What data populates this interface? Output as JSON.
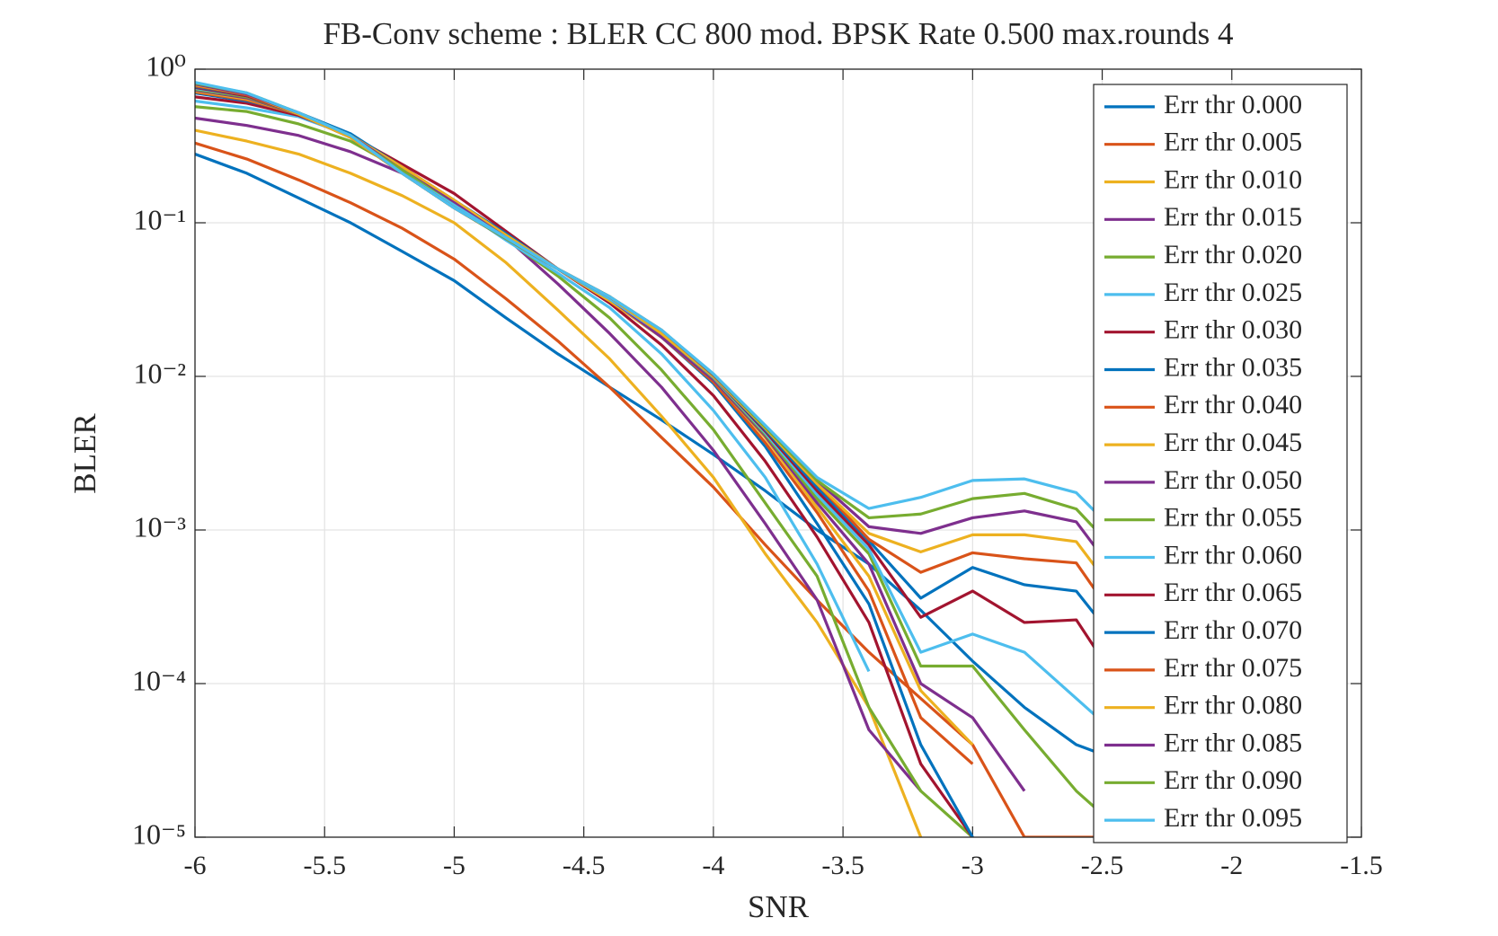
{
  "chart_data": {
    "type": "line",
    "title": "FB-Conv scheme : BLER CC 800 mod. BPSK Rate 0.500 max.rounds 4",
    "xlabel": "SNR",
    "ylabel": "BLER",
    "log_y": true,
    "grid": true,
    "legend": "upper right",
    "xlim": [
      -6,
      -1.5
    ],
    "xticks": [
      -6,
      -5.5,
      -5,
      -4.5,
      -4,
      -3.5,
      -3,
      -2.5,
      -2,
      -1.5
    ],
    "ylim": [
      1e-05,
      1
    ],
    "yticks": [
      {
        "value": 1e-05,
        "label": "10⁻⁵"
      },
      {
        "value": 0.0001,
        "label": "10⁻⁴"
      },
      {
        "value": 0.001,
        "label": "10⁻³"
      },
      {
        "value": 0.01,
        "label": "10⁻²"
      },
      {
        "value": 0.1,
        "label": "10⁻¹"
      },
      {
        "value": 1,
        "label": "10⁰"
      }
    ],
    "x": [
      -6,
      -5.8,
      -5.6,
      -5.4,
      -5.2,
      -5,
      -4.8,
      -4.6,
      -4.4,
      -4.2,
      -4,
      -3.8,
      -3.6,
      -3.4,
      -3.2,
      -3,
      -2.8,
      -2.6,
      -2.4
    ],
    "series": [
      {
        "name": "Err thr 0.000",
        "color": "#0072BD",
        "values": [
          0.28,
          0.21,
          0.145,
          0.1,
          0.065,
          0.042,
          0.024,
          0.014,
          0.0085,
          0.0052,
          0.0031,
          0.0018,
          0.001,
          0.0006,
          0.0003,
          0.00014,
          7e-05,
          4e-05,
          3e-05
        ]
      },
      {
        "name": "Err thr 0.005",
        "color": "#D95319",
        "values": [
          0.33,
          0.26,
          0.19,
          0.135,
          0.092,
          0.058,
          0.032,
          0.017,
          0.0085,
          0.004,
          0.0019,
          0.0008,
          0.00035,
          0.00016,
          8e-05,
          4e-05,
          1e-05,
          1e-05,
          1e-05
        ]
      },
      {
        "name": "Err thr 0.010",
        "color": "#EDB120",
        "values": [
          0.4,
          0.34,
          0.28,
          0.21,
          0.15,
          0.1,
          0.055,
          0.027,
          0.013,
          0.0055,
          0.0022,
          0.0007,
          0.00025,
          7e-05,
          1e-05,
          null,
          null,
          null,
          null
        ]
      },
      {
        "name": "Err thr 0.015",
        "color": "#7E2F8E",
        "values": [
          0.48,
          0.43,
          0.37,
          0.29,
          0.21,
          0.14,
          0.08,
          0.04,
          0.019,
          0.0085,
          0.0033,
          0.0011,
          0.00035,
          5e-05,
          2e-05,
          null,
          null,
          null,
          null
        ]
      },
      {
        "name": "Err thr 0.020",
        "color": "#77AC30",
        "values": [
          0.57,
          0.53,
          0.44,
          0.34,
          0.22,
          0.13,
          0.078,
          0.045,
          0.024,
          0.011,
          0.0045,
          0.0015,
          0.0005,
          7e-05,
          2e-05,
          1e-05,
          null,
          null,
          null
        ]
      },
      {
        "name": "Err thr 0.025",
        "color": "#4DBEEE",
        "values": [
          0.62,
          0.56,
          0.49,
          0.37,
          0.23,
          0.13,
          0.077,
          0.047,
          0.028,
          0.014,
          0.006,
          0.0022,
          0.0006,
          0.00012,
          null,
          null,
          null,
          null,
          null
        ]
      },
      {
        "name": "Err thr 0.030",
        "color": "#A2142F",
        "values": [
          0.66,
          0.6,
          0.5,
          0.37,
          0.24,
          0.155,
          0.088,
          0.05,
          0.03,
          0.016,
          0.0075,
          0.0028,
          0.0009,
          0.00025,
          3e-05,
          1e-05,
          null,
          null,
          null
        ]
      },
      {
        "name": "Err thr 0.035",
        "color": "#0072BD",
        "values": [
          0.7,
          0.62,
          0.52,
          0.38,
          0.23,
          0.14,
          0.085,
          0.05,
          0.031,
          0.018,
          0.009,
          0.0035,
          0.0011,
          0.00033,
          4e-05,
          1e-05,
          null,
          null,
          null
        ]
      },
      {
        "name": "Err thr 0.040",
        "color": "#D95319",
        "values": [
          0.71,
          0.63,
          0.51,
          0.37,
          0.23,
          0.14,
          0.083,
          0.05,
          0.031,
          0.018,
          0.0092,
          0.0037,
          0.0013,
          0.0004,
          6e-05,
          3e-05,
          null,
          null,
          null
        ]
      },
      {
        "name": "Err thr 0.045",
        "color": "#EDB120",
        "values": [
          0.72,
          0.64,
          0.51,
          0.37,
          0.23,
          0.14,
          0.083,
          0.05,
          0.031,
          0.018,
          0.0095,
          0.004,
          0.0014,
          0.0005,
          9e-05,
          4e-05,
          null,
          null,
          null
        ]
      },
      {
        "name": "Err thr 0.050",
        "color": "#7E2F8E",
        "values": [
          0.73,
          0.65,
          0.51,
          0.37,
          0.22,
          0.135,
          0.08,
          0.05,
          0.032,
          0.018,
          0.0095,
          0.0041,
          0.0015,
          0.0006,
          0.0001,
          6e-05,
          2e-05,
          null,
          null
        ]
      },
      {
        "name": "Err thr 0.055",
        "color": "#77AC30",
        "values": [
          0.74,
          0.66,
          0.51,
          0.36,
          0.22,
          0.13,
          0.08,
          0.05,
          0.032,
          0.019,
          0.0098,
          0.0042,
          0.0016,
          0.0007,
          0.00013,
          0.00013,
          5e-05,
          2e-05,
          1e-05
        ]
      },
      {
        "name": "Err thr 0.060",
        "color": "#4DBEEE",
        "values": [
          0.75,
          0.67,
          0.51,
          0.36,
          0.21,
          0.13,
          0.08,
          0.05,
          0.032,
          0.019,
          0.0099,
          0.0043,
          0.0017,
          0.00075,
          0.00016,
          0.00021,
          0.00016,
          8e-05,
          4e-05
        ]
      },
      {
        "name": "Err thr 0.065",
        "color": "#A2142F",
        "values": [
          0.76,
          0.67,
          0.51,
          0.36,
          0.21,
          0.125,
          0.079,
          0.05,
          0.033,
          0.019,
          0.01,
          0.0044,
          0.0018,
          0.0008,
          0.00027,
          0.0004,
          0.00025,
          0.00026,
          8e-05
        ]
      },
      {
        "name": "Err thr 0.070",
        "color": "#0072BD",
        "values": [
          0.77,
          0.68,
          0.51,
          0.36,
          0.21,
          0.125,
          0.079,
          0.05,
          0.033,
          0.019,
          0.01,
          0.0045,
          0.0019,
          0.00085,
          0.00036,
          0.00057,
          0.00044,
          0.0004,
          0.00015
        ]
      },
      {
        "name": "Err thr 0.075",
        "color": "#D95319",
        "values": [
          0.78,
          0.68,
          0.51,
          0.36,
          0.21,
          0.125,
          0.079,
          0.05,
          0.033,
          0.019,
          0.01,
          0.0046,
          0.002,
          0.00087,
          0.00053,
          0.00071,
          0.00065,
          0.00061,
          0.0002
        ]
      },
      {
        "name": "Err thr 0.080",
        "color": "#EDB120",
        "values": [
          0.79,
          0.69,
          0.51,
          0.36,
          0.21,
          0.125,
          0.079,
          0.05,
          0.033,
          0.019,
          0.01,
          0.0046,
          0.002,
          0.00095,
          0.00072,
          0.00093,
          0.00093,
          0.00084,
          0.0003
        ]
      },
      {
        "name": "Err thr 0.085",
        "color": "#7E2F8E",
        "values": [
          0.8,
          0.69,
          0.52,
          0.37,
          0.21,
          0.125,
          0.079,
          0.05,
          0.033,
          0.02,
          0.0102,
          0.0047,
          0.0021,
          0.00105,
          0.00095,
          0.0012,
          0.00133,
          0.00113,
          0.0004
        ]
      },
      {
        "name": "Err thr 0.090",
        "color": "#77AC30",
        "values": [
          0.81,
          0.7,
          0.52,
          0.37,
          0.21,
          0.125,
          0.079,
          0.05,
          0.033,
          0.02,
          0.0103,
          0.0047,
          0.0021,
          0.0012,
          0.00127,
          0.0016,
          0.00173,
          0.00137,
          0.0006
        ]
      },
      {
        "name": "Err thr 0.095",
        "color": "#4DBEEE",
        "values": [
          0.82,
          0.7,
          0.52,
          0.37,
          0.21,
          0.125,
          0.08,
          0.05,
          0.033,
          0.02,
          0.0104,
          0.0048,
          0.0022,
          0.00138,
          0.00163,
          0.0021,
          0.00215,
          0.00175,
          0.0008
        ]
      }
    ]
  }
}
